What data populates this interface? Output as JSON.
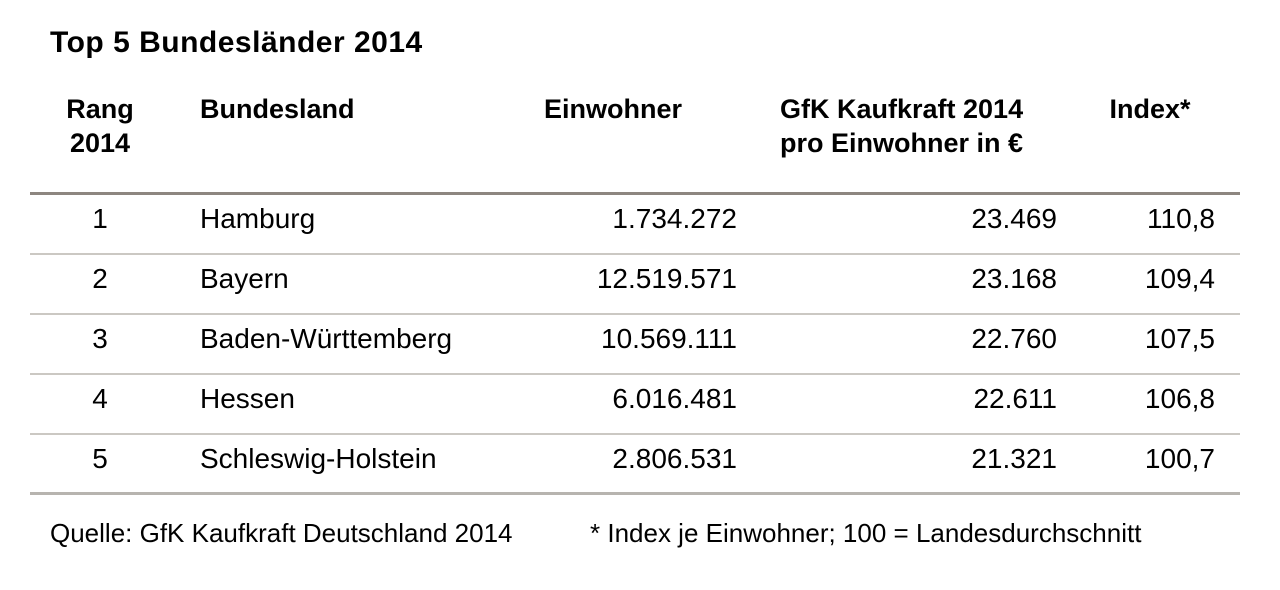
{
  "title": "Top 5 Bundesländer 2014",
  "header": {
    "rang_line1": "Rang",
    "rang_line2": "2014",
    "bundesland": "Bundesland",
    "einwohner": "Einwohner",
    "kaufkraft_line1": "GfK Kaufkraft 2014",
    "kaufkraft_line2": "pro Einwohner in €",
    "index": "Index*"
  },
  "chart_data": {
    "type": "table",
    "title": "Top 5 Bundesländer 2014",
    "columns": [
      "Rang 2014",
      "Bundesland",
      "Einwohner",
      "GfK Kaufkraft 2014 pro Einwohner in €",
      "Index*"
    ],
    "rows": [
      [
        "1",
        "Hamburg",
        "1.734.272",
        "23.469",
        "110,8"
      ],
      [
        "2",
        "Bayern",
        "12.519.571",
        "23.168",
        "109,4"
      ],
      [
        "3",
        "Baden-Württemberg",
        "10.569.111",
        "22.760",
        "107,5"
      ],
      [
        "4",
        "Hessen",
        "6.016.481",
        "22.611",
        "106,8"
      ],
      [
        "5",
        "Schleswig-Holstein",
        "2.806.531",
        "21.321",
        "100,7"
      ]
    ]
  },
  "footer": {
    "source": "Quelle: GfK Kaufkraft Deutschland 2014",
    "footnote": "* Index je Einwohner; 100 = Landesdurchschnitt"
  },
  "colors": {
    "background": "#ffffff",
    "text": "#000000",
    "divider_strong": "#8d8680",
    "divider_light": "#cbc8c3",
    "divider_bottom": "#b7b4af"
  }
}
